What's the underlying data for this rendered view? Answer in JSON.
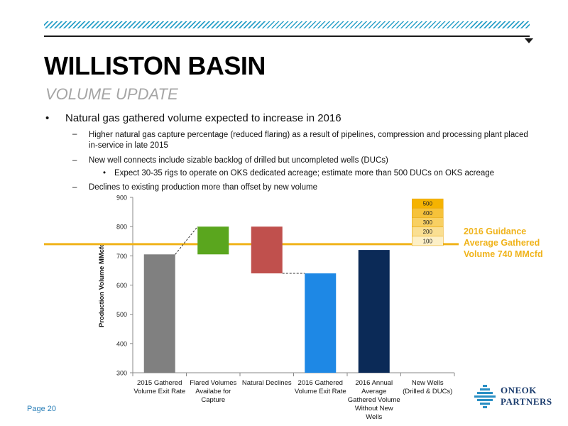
{
  "header": {
    "title": "WILLISTON BASIN",
    "subtitle": "VOLUME UPDATE"
  },
  "bullets": {
    "main": "Natural gas gathered volume expected to increase in 2016",
    "sub1": "Higher natural gas capture percentage (reduced flaring) as a result of pipelines, compression and processing plant placed in-service in late 2015",
    "sub2": "New well connects include sizable backlog of drilled but uncompleted wells (DUCs)",
    "subsub1": "Expect 30-35 rigs to operate on OKS dedicated acreage; estimate more than 500 DUCs on OKS acreage",
    "sub3": "Declines to existing production more than offset by new volume"
  },
  "chart_data": {
    "type": "bar",
    "subtype": "waterfall",
    "ylabel": "Production Volume MMcfd",
    "ylim": [
      300,
      900
    ],
    "yticks": [
      300,
      400,
      500,
      600,
      700,
      800,
      900
    ],
    "categories": [
      [
        "2015 Gathered",
        "Volume Exit Rate"
      ],
      [
        "Flared Volumes",
        "Availabe for",
        "Capture"
      ],
      [
        "Natural Declines"
      ],
      [
        "2016 Gathered",
        "Volume Exit Rate"
      ],
      [
        "2016 Annual",
        "Average",
        "Gathered Volume",
        "Without New",
        "Wells"
      ],
      [
        "New Wells",
        "(Drilled & DUCs)"
      ]
    ],
    "bars": [
      {
        "base": 300,
        "top": 705,
        "color": "#808080"
      },
      {
        "base": 705,
        "top": 800,
        "color": "#5aa61e"
      },
      {
        "base": 640,
        "top": 800,
        "color": "#c0504d"
      },
      {
        "base": 300,
        "top": 640,
        "color": "#1e88e5"
      },
      {
        "base": 300,
        "top": 720,
        "color": "#0b2a57"
      }
    ],
    "connectors": [
      {
        "from": 0,
        "to": 1,
        "value_from": 705,
        "value_to": 800
      },
      {
        "from": 2,
        "to": 3,
        "value_from": 640,
        "value_to": 640
      }
    ],
    "new_wells_stack": {
      "labels": [
        "500",
        "400",
        "300",
        "200",
        "100"
      ],
      "colors": [
        "#f5b301",
        "#f6c23a",
        "#f8d063",
        "#fadf92",
        "#fdf0c7"
      ],
      "top": 895,
      "bottom": 735
    },
    "guidance": {
      "value": 740,
      "color": "#f0b31a",
      "label": [
        "2016 Guidance",
        "Average Gathered",
        "Volume 740 MMcfd"
      ]
    },
    "grid": false
  },
  "footer": {
    "page": "Page 20",
    "logo_line1": "ONEOK",
    "logo_line2": "PARTNERS"
  }
}
